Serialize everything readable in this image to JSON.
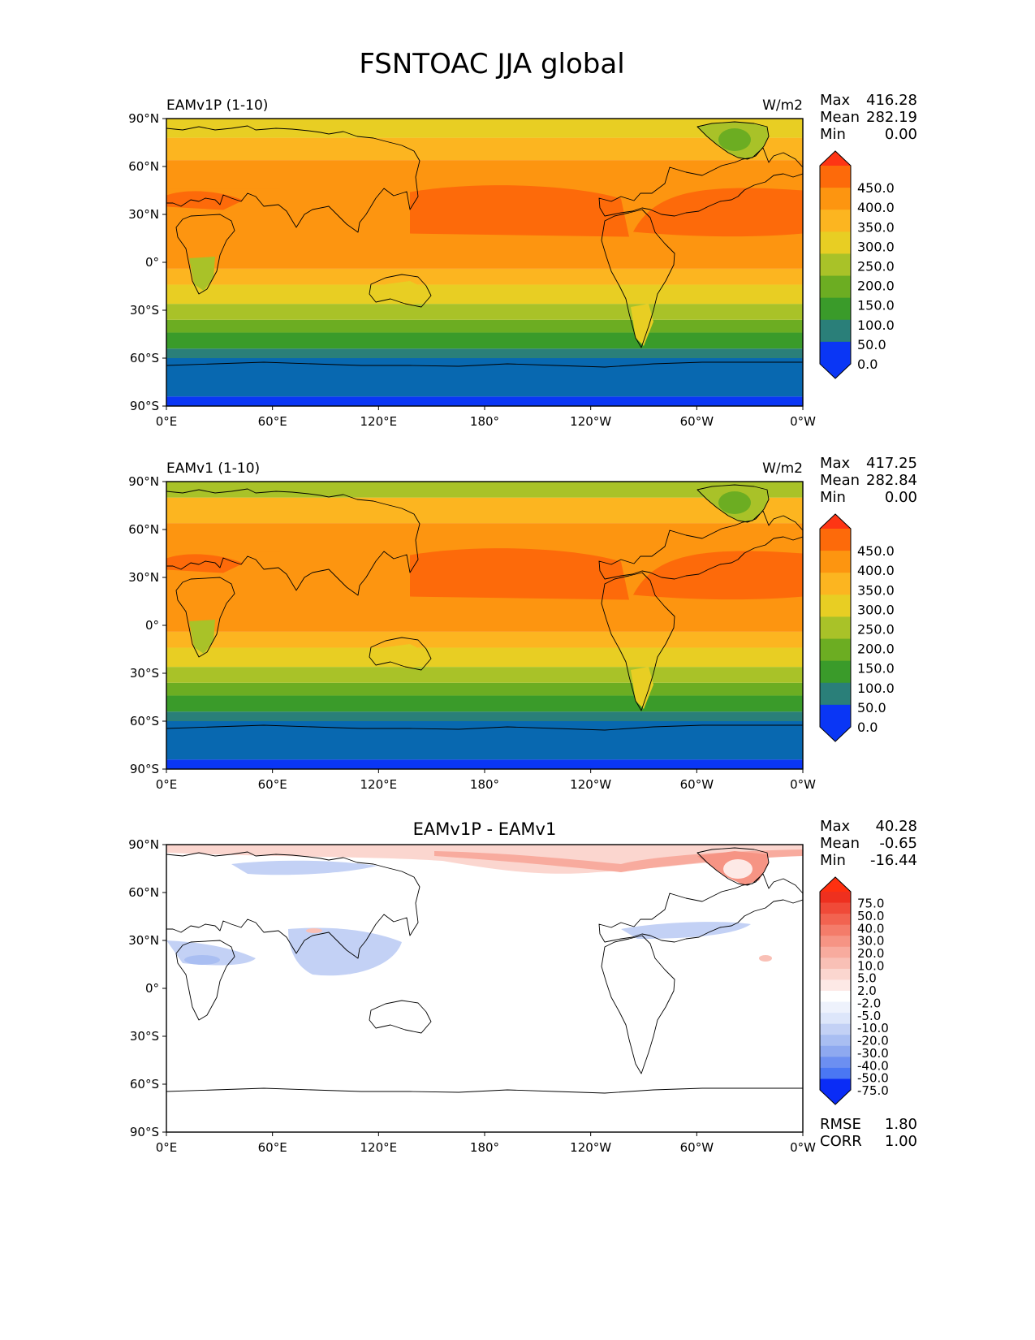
{
  "title": "FSNTOAC JJA global",
  "lon_ticks": [
    "0°E",
    "60°E",
    "120°E",
    "180°",
    "120°W",
    "60°W",
    "0°W"
  ],
  "lat_ticks": [
    "90°N",
    "60°N",
    "30°N",
    "0°",
    "30°S",
    "60°S",
    "90°S"
  ],
  "colors": {
    "abs_levels": [
      "#0a36f5",
      "#0868b0",
      "#2a7f79",
      "#3a9b2a",
      "#6cad22",
      "#a9c228",
      "#e8ce23",
      "#fcb520",
      "#fd9510",
      "#fd6a0a",
      "#fe3514"
    ],
    "diff_levels": [
      "#0a2cf6",
      "#2a5cf5",
      "#4a77f3",
      "#6c8ff1",
      "#8ea9f0",
      "#a9bef2",
      "#c3d1f5",
      "#dde6fa",
      "#eef2fc",
      "#ffffff",
      "#fde9e6",
      "#fbd6cf",
      "#f9c0b6",
      "#f8ab9e",
      "#f69484",
      "#f47c6a",
      "#f26350",
      "#f04a38",
      "#ee301f",
      "#fe3010"
    ]
  },
  "chart_data": [
    {
      "type": "heatmap",
      "title": "EAMv1P (1-10)",
      "units": "W/m2",
      "stats": {
        "max_label": "Max",
        "max": "416.28",
        "mean_label": "Mean",
        "mean": "282.19",
        "min_label": "Min",
        "min": "0.00"
      },
      "colorbar_ticks": [
        "450.0",
        "400.0",
        "350.0",
        "300.0",
        "250.0",
        "200.0",
        "150.0",
        "100.0",
        "50.0",
        "0.0"
      ],
      "zonal_bands_deg": [
        [
          -90,
          -84,
          0
        ],
        [
          -84,
          -60,
          1
        ],
        [
          -60,
          -54,
          2
        ],
        [
          -54,
          -44,
          3
        ],
        [
          -44,
          -36,
          4
        ],
        [
          -36,
          -26,
          5
        ],
        [
          -26,
          -14,
          6
        ],
        [
          -14,
          -4,
          7
        ],
        [
          -4,
          64,
          8
        ],
        [
          64,
          78,
          7
        ],
        [
          78,
          90,
          6
        ]
      ],
      "subtropical_max_band_deg": [
        16,
        46
      ]
    },
    {
      "type": "heatmap",
      "title": "EAMv1 (1-10)",
      "units": "W/m2",
      "stats": {
        "max_label": "Max",
        "max": "417.25",
        "mean_label": "Mean",
        "mean": "282.84",
        "min_label": "Min",
        "min": "0.00"
      },
      "colorbar_ticks": [
        "450.0",
        "400.0",
        "350.0",
        "300.0",
        "250.0",
        "200.0",
        "150.0",
        "100.0",
        "50.0",
        "0.0"
      ],
      "zonal_bands_deg": [
        [
          -90,
          -84,
          0
        ],
        [
          -84,
          -60,
          1
        ],
        [
          -60,
          -54,
          2
        ],
        [
          -54,
          -44,
          3
        ],
        [
          -44,
          -36,
          4
        ],
        [
          -36,
          -26,
          5
        ],
        [
          -26,
          -14,
          6
        ],
        [
          -14,
          -4,
          7
        ],
        [
          -4,
          64,
          8
        ],
        [
          64,
          80,
          7
        ],
        [
          80,
          90,
          5
        ]
      ],
      "subtropical_max_band_deg": [
        16,
        46
      ]
    },
    {
      "type": "heatmap",
      "title": "EAMv1P - EAMv1",
      "units": "",
      "stats": {
        "max_label": "Max",
        "max": "40.28",
        "mean_label": "Mean",
        "mean": "-0.65",
        "min_label": "Min",
        "min": "-16.44"
      },
      "colorbar_ticks": [
        "75.0",
        "50.0",
        "40.0",
        "30.0",
        "20.0",
        "10.0",
        "5.0",
        "2.0",
        "-2.0",
        "-5.0",
        "-10.0",
        "-20.0",
        "-30.0",
        "-40.0",
        "-50.0",
        "-75.0"
      ],
      "rmse_label": "RMSE",
      "rmse": "1.80",
      "corr_label": "CORR",
      "corr": "1.00"
    }
  ]
}
